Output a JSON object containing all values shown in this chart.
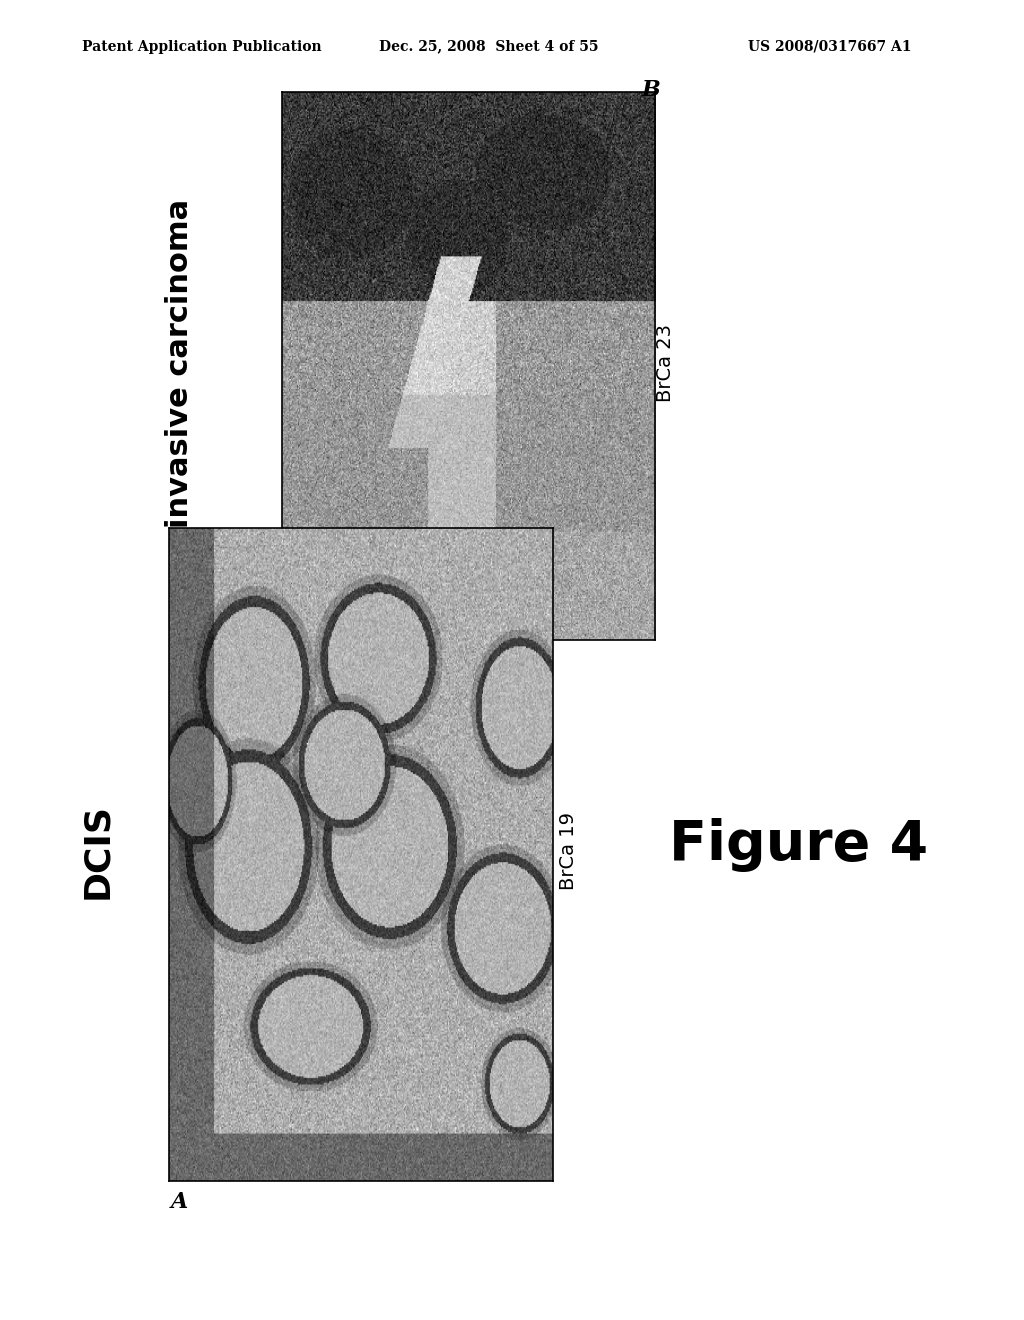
{
  "header_left": "Patent Application Publication",
  "header_center": "Dec. 25, 2008  Sheet 4 of 55",
  "header_right": "US 2008/0317667 A1",
  "figure_label": "Figure 4",
  "panel_A_label": "A",
  "panel_B_label": "B",
  "panel_A_title": "DCIS",
  "panel_B_title": "invasive carcinoma",
  "panel_A_sublabel": "BrCa 19",
  "panel_B_sublabel": "BrCa 23",
  "bg_color": "#ffffff",
  "header_fontsize": 10,
  "label_fontsize": 16,
  "title_A_fontsize": 26,
  "title_B_fontsize": 22,
  "figure_label_fontsize": 40,
  "sublabel_fontsize": 14
}
